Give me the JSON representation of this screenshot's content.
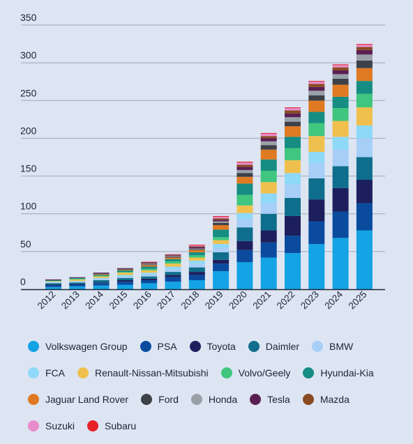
{
  "chart_data": {
    "type": "bar",
    "stacked": true,
    "categories": [
      "2012",
      "2013",
      "2014",
      "2015",
      "2016",
      "2017",
      "2018",
      "2019",
      "2020",
      "2021",
      "2022",
      "2023",
      "2024",
      "2025"
    ],
    "ylim": [
      0,
      350
    ],
    "yticks": [
      0,
      50,
      100,
      150,
      200,
      250,
      300,
      350
    ],
    "grid": true,
    "legend_position": "bottom",
    "series": [
      {
        "name": "Volkswagen Group",
        "color": "#14a3e4",
        "values": [
          3,
          4,
          5,
          6,
          8,
          10,
          12,
          24,
          36,
          42,
          48,
          60,
          68,
          78
        ]
      },
      {
        "name": "PSA",
        "color": "#0a4b9e",
        "values": [
          2,
          2,
          3,
          4,
          4,
          6,
          7,
          10,
          16,
          20,
          23,
          30,
          35,
          36
        ]
      },
      {
        "name": "Toyota",
        "color": "#1c1f5c",
        "values": [
          1,
          1,
          1,
          2,
          2,
          3,
          4,
          5,
          12,
          16,
          26,
          29,
          31,
          31
        ]
      },
      {
        "name": "Daimler",
        "color": "#0f6e8c",
        "values": [
          2,
          2,
          3,
          3,
          3,
          4,
          6,
          10,
          18,
          22,
          24,
          28,
          29,
          30
        ]
      },
      {
        "name": "BMW",
        "color": "#a7cef6",
        "values": [
          1,
          1,
          2,
          2,
          3,
          4,
          5,
          6,
          11,
          14,
          18,
          20,
          22,
          25
        ]
      },
      {
        "name": "FCA",
        "color": "#8fd9f8",
        "values": [
          1,
          1,
          1,
          2,
          2,
          3,
          4,
          5,
          8,
          13,
          15,
          15,
          17,
          17
        ]
      },
      {
        "name": "Renault-Nissan-Mitsubishi",
        "color": "#f0c04e",
        "values": [
          1,
          2,
          2,
          3,
          3,
          4,
          4,
          5,
          10,
          15,
          17,
          21,
          21,
          24
        ]
      },
      {
        "name": "Volvo/Geely",
        "color": "#40c67e",
        "values": [
          0,
          1,
          1,
          1,
          2,
          3,
          3,
          4,
          14,
          15,
          16,
          17,
          17,
          18
        ]
      },
      {
        "name": "Hyundai-Kia",
        "color": "#168d83",
        "values": [
          1,
          1,
          1,
          2,
          3,
          3,
          4,
          10,
          15,
          15,
          15,
          15,
          15,
          17
        ]
      },
      {
        "name": "Jaguar Land Rover",
        "color": "#e07a22",
        "values": [
          0,
          0,
          1,
          1,
          2,
          2,
          3,
          6,
          9,
          13,
          14,
          15,
          16,
          17
        ]
      },
      {
        "name": "Ford",
        "color": "#3c4148",
        "values": [
          0,
          0,
          1,
          1,
          1,
          1,
          1,
          3,
          5,
          6,
          6,
          7,
          8,
          10
        ]
      },
      {
        "name": "Honda",
        "color": "#9aa0a8",
        "values": [
          0,
          0,
          0,
          0,
          1,
          1,
          1,
          2,
          4,
          5,
          6,
          6,
          6,
          8
        ]
      },
      {
        "name": "Tesla",
        "color": "#5a1f52",
        "values": [
          1,
          1,
          1,
          1,
          1,
          1,
          2,
          2,
          4,
          4,
          5,
          5,
          5,
          6
        ]
      },
      {
        "name": "Mazda",
        "color": "#8a4b23",
        "values": [
          0,
          0,
          0,
          0,
          1,
          1,
          1,
          2,
          3,
          3,
          4,
          4,
          4,
          4
        ]
      },
      {
        "name": "Suzuki",
        "color": "#e88ccb",
        "values": [
          0,
          0,
          0,
          0,
          1,
          1,
          1,
          2,
          3,
          3,
          3,
          3,
          3,
          3
        ]
      },
      {
        "name": "Subaru",
        "color": "#e62129",
        "values": [
          0,
          0,
          0,
          0,
          0,
          0,
          1,
          1,
          1,
          1,
          1,
          1,
          1,
          1
        ]
      }
    ]
  }
}
